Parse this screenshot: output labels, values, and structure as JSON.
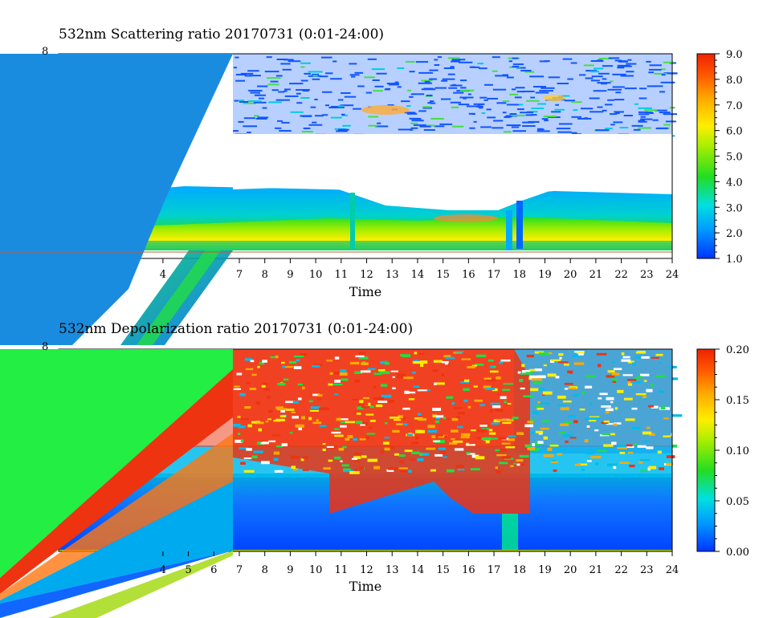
{
  "chart_data": [
    {
      "type": "heatmap",
      "title": "532nm Scattering ratio  20170731 (0:01-24:00)",
      "xlabel": "Time",
      "ylabel": "",
      "x_ticks": [
        "4",
        "7",
        "8",
        "9",
        "10",
        "11",
        "12",
        "13",
        "14",
        "15",
        "16",
        "17",
        "18",
        "19",
        "20",
        "21",
        "22",
        "23",
        "24"
      ],
      "y_top_label": "8",
      "colorbar": {
        "ticks": [
          "9.0",
          "8.0",
          "7.0",
          "6.0",
          "5.0",
          "4.0",
          "3.0",
          "2.0",
          "1.0"
        ],
        "range": [
          1.0,
          9.0
        ]
      },
      "colors": [
        "#0033ff",
        "#00aaff",
        "#00e5cc",
        "#22dd22",
        "#aaee00",
        "#ffee00",
        "#ff9900",
        "#ff5500",
        "#ee2200"
      ]
    },
    {
      "type": "heatmap",
      "title": "532nm Depolarization ratio  20170731 (0:01-24:00)",
      "xlabel": "Time",
      "ylabel": "",
      "x_ticks": [
        "4",
        "5",
        "6",
        "7",
        "8",
        "9",
        "10",
        "11",
        "12",
        "13",
        "14",
        "15",
        "16",
        "17",
        "18",
        "19",
        "20",
        "21",
        "22",
        "23",
        "24"
      ],
      "y_top_label": "8",
      "colorbar": {
        "ticks": [
          "0.20",
          "0.15",
          "0.10",
          "0.05",
          "0.00"
        ],
        "range": [
          0.0,
          0.2
        ]
      },
      "colors": [
        "#0033ff",
        "#00aaff",
        "#00e5cc",
        "#22dd22",
        "#aaee00",
        "#ffee00",
        "#ff9900",
        "#ff5500",
        "#ee2200"
      ]
    }
  ]
}
